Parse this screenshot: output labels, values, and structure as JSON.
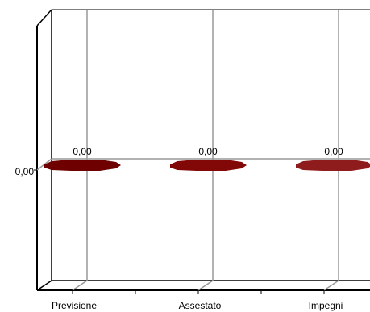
{
  "chart_data": {
    "type": "bar",
    "style": "3d",
    "categories": [
      "Previsione",
      "Assestato",
      "Impegni"
    ],
    "values": [
      0,
      0,
      0
    ],
    "data_labels": [
      "0,00",
      "0,00",
      "0,00"
    ],
    "y_ticks": [
      {
        "value": 0,
        "label": "0,00"
      }
    ],
    "title": "",
    "xlabel": "",
    "ylabel": "",
    "grid": true,
    "legend": "none",
    "colors": [
      "#6e0000",
      "#820808",
      "#8e1c1c"
    ]
  }
}
